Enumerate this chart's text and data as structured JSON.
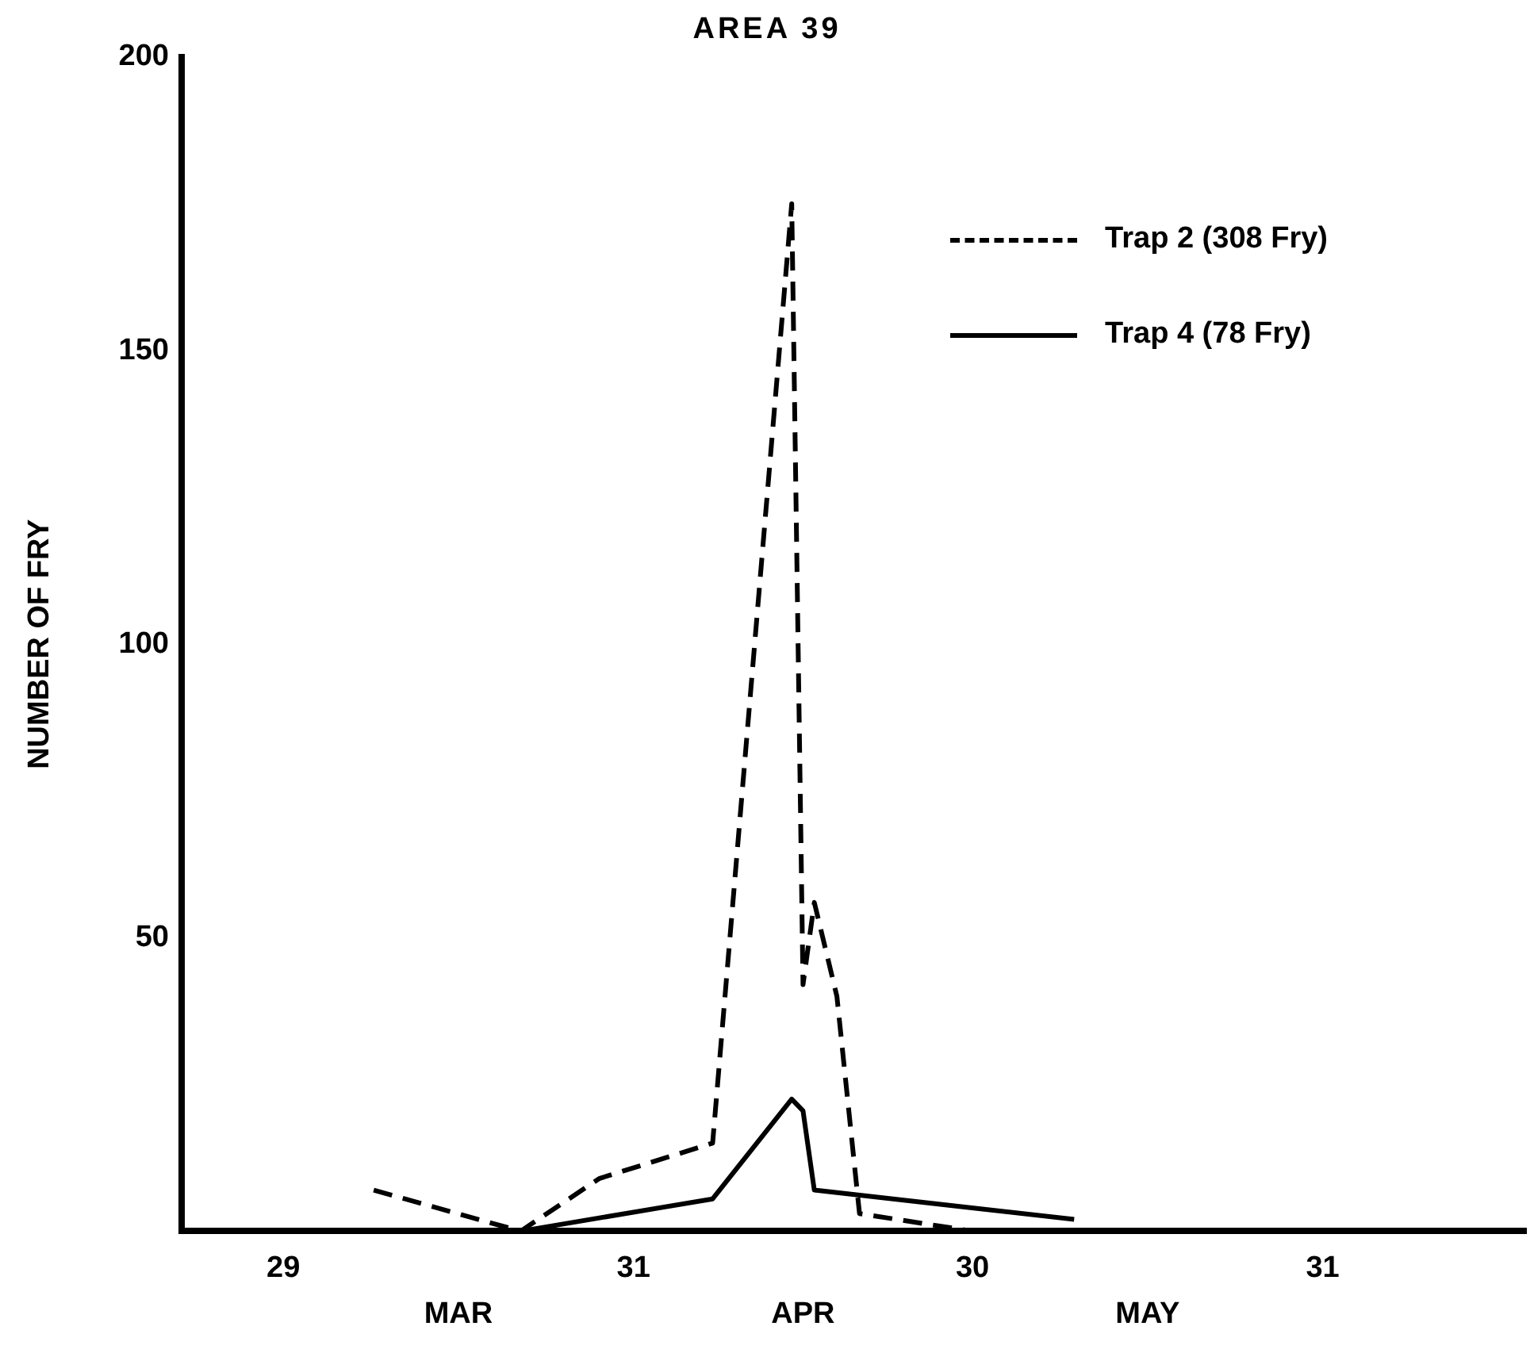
{
  "chart_data": {
    "type": "line",
    "title": "AREA 39",
    "ylabel": "NUMBER OF FRY",
    "xlim": [
      "--02-20",
      "--06-18"
    ],
    "xticks": [
      {
        "value": "--02-29",
        "label": "29"
      },
      {
        "value": "--03-31",
        "label": "31"
      },
      {
        "value": "--04-30",
        "label": "30"
      },
      {
        "value": "--05-31",
        "label": "31"
      }
    ],
    "ylim": [
      0,
      200
    ],
    "yticks": [
      50,
      100,
      150,
      200
    ],
    "annotations": [
      "MAR",
      "APR",
      "MAY"
    ],
    "grid": false,
    "legend": "top right",
    "marker": "none",
    "series": [
      {
        "name": "Trap 2 (308 Fry)",
        "color": "#000000",
        "line_style": "dashed",
        "x": [
          "--03-08",
          "--03-21",
          "--03-28",
          "--04-07",
          "--04-14",
          "--04-15",
          "--04-16",
          "--04-18",
          "--04-20",
          "--04-30"
        ],
        "values": [
          7,
          0,
          9,
          15,
          175,
          42,
          56,
          40,
          3,
          0
        ]
      },
      {
        "name": "Trap 4 (78 Fry)",
        "color": "#000000",
        "line_style": "solid",
        "x": [
          "--03-21",
          "--04-07",
          "--04-14",
          "--04-15",
          "--04-16",
          "--05-09"
        ],
        "values": [
          0,
          5.5,
          22.5,
          20.5,
          7,
          2
        ]
      }
    ]
  }
}
